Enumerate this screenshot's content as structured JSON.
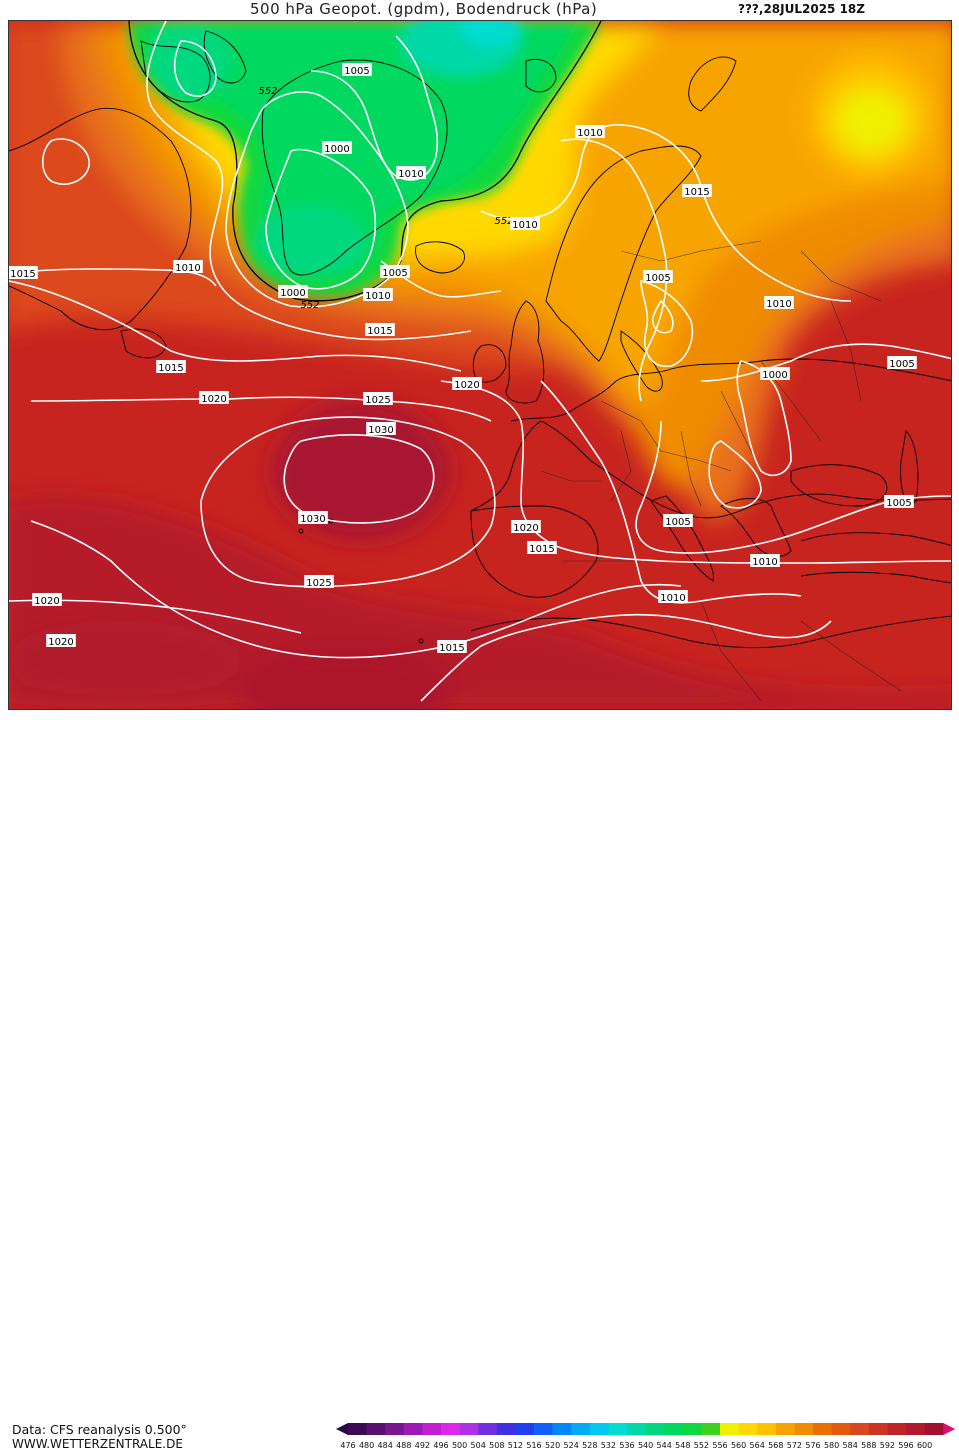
{
  "header": {
    "title": "500 hPa Geopot. (gpdm), Bodendruck (hPa)",
    "date": "???,28JUL2025 18Z"
  },
  "footer": {
    "data_source": "Data: CFS reanalysis 0.500°",
    "website": "WWW.WETTERZENTRALE.DE"
  },
  "legend": {
    "ticks": [
      "476",
      "480",
      "484",
      "488",
      "492",
      "496",
      "500",
      "504",
      "508",
      "512",
      "516",
      "520",
      "524",
      "528",
      "532",
      "536",
      "540",
      "544",
      "548",
      "552",
      "556",
      "560",
      "564",
      "568",
      "572",
      "576",
      "580",
      "584",
      "588",
      "592",
      "596",
      "600"
    ],
    "colors": [
      "#3c0a50",
      "#5a1070",
      "#7a1592",
      "#9a1ab2",
      "#c020d0",
      "#dc28e8",
      "#b030e8",
      "#7030e0",
      "#4030e0",
      "#2040f0",
      "#1060f8",
      "#0088f8",
      "#00aaf4",
      "#00c8ee",
      "#00dcd0",
      "#00d8a8",
      "#00d880",
      "#00d860",
      "#10d840",
      "#3ed020",
      "#f0f000",
      "#ffd800",
      "#ffc000",
      "#f8a400",
      "#f08c00",
      "#e87000",
      "#e05a10",
      "#d84820",
      "#cc3424",
      "#c02428",
      "#b01a2c",
      "#a01030"
    ]
  },
  "isobar_labels": [
    {
      "text": "1005"
    },
    {
      "text": "552"
    },
    {
      "text": "1000"
    },
    {
      "text": "1010"
    },
    {
      "text": "1010"
    },
    {
      "text": "1015"
    },
    {
      "text": "1010"
    },
    {
      "text": "1000"
    },
    {
      "text": "552"
    },
    {
      "text": "1005"
    },
    {
      "text": "1010"
    },
    {
      "text": "552"
    },
    {
      "text": "1010"
    },
    {
      "text": "1015"
    },
    {
      "text": "1005"
    },
    {
      "text": "1010"
    },
    {
      "text": "1015"
    },
    {
      "text": "1015"
    },
    {
      "text": "1020"
    },
    {
      "text": "1020"
    },
    {
      "text": "1025"
    },
    {
      "text": "1030"
    },
    {
      "text": "1000"
    },
    {
      "text": "1005"
    },
    {
      "text": "1030"
    },
    {
      "text": "1020"
    },
    {
      "text": "1015"
    },
    {
      "text": "1005"
    },
    {
      "text": "1005"
    },
    {
      "text": "1010"
    },
    {
      "text": "1025"
    },
    {
      "text": "1010"
    },
    {
      "text": "1020"
    },
    {
      "text": "1015"
    },
    {
      "text": "1020"
    }
  ]
}
